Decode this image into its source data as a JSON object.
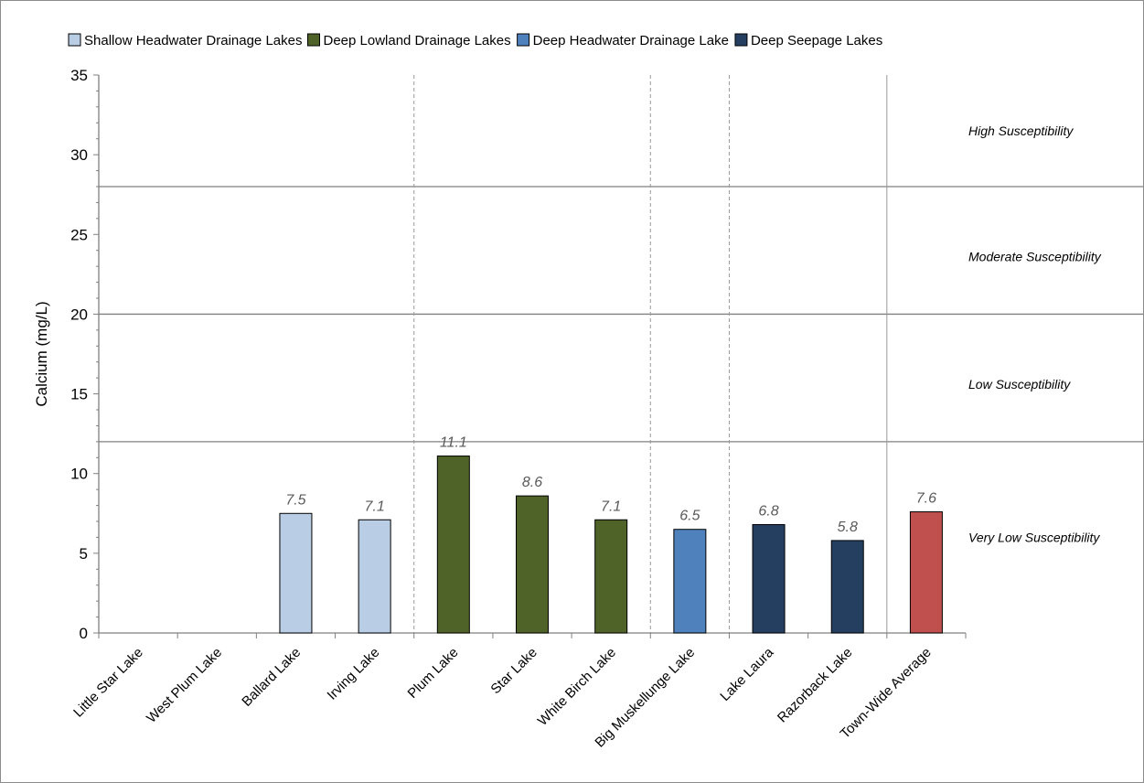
{
  "chart_data": {
    "type": "bar",
    "title": "",
    "xlabel": "",
    "ylabel": "Calcium (mg/L)",
    "ylim": [
      0,
      35
    ],
    "yticks": [
      0,
      5,
      10,
      15,
      20,
      25,
      30,
      35
    ],
    "grid": false,
    "legend_position": "top",
    "categories": [
      "Little Star Lake",
      "West Plum Lake",
      "Ballard Lake",
      "Irving Lake",
      "Plum Lake",
      "Star Lake",
      "White Birch Lake",
      "Big Muskellunge Lake",
      "Lake Laura",
      "Razorback Lake",
      "Town-Wide Average"
    ],
    "values": [
      null,
      null,
      7.5,
      7.1,
      11.1,
      8.6,
      7.1,
      6.5,
      6.8,
      5.8,
      7.6
    ],
    "value_labels": [
      "",
      "",
      "7.5",
      "7.1",
      "11.1",
      "8.6",
      "7.1",
      "6.5",
      "6.8",
      "5.8",
      "7.6"
    ],
    "bar_groups": [
      "shallow-headwater",
      "shallow-headwater",
      "shallow-headwater",
      "shallow-headwater",
      "deep-lowland",
      "deep-lowland",
      "deep-lowland",
      "deep-headwater",
      "deep-seepage",
      "deep-seepage",
      "average"
    ],
    "group_colors": {
      "shallow-headwater": "#b9cde5",
      "deep-lowland": "#4f6228",
      "deep-headwater": "#4f81bd",
      "deep-seepage": "#243f60",
      "average": "#c0504d"
    },
    "legend": [
      {
        "label": "Shallow Headwater Drainage Lakes",
        "group": "shallow-headwater"
      },
      {
        "label": "Deep Lowland Drainage Lakes",
        "group": "deep-lowland"
      },
      {
        "label": "Deep Headwater Drainage Lake",
        "group": "deep-headwater"
      },
      {
        "label": "Deep Seepage Lakes",
        "group": "deep-seepage"
      }
    ],
    "zone_thresholds": [
      12,
      20,
      28
    ],
    "zones": [
      {
        "label": "High Susceptibility",
        "value": 31.5
      },
      {
        "label": "Moderate Susceptibility",
        "value": 23.6
      },
      {
        "label": "Low Susceptibility",
        "value": 15.6
      },
      {
        "label": "Very Low Susceptibility",
        "value": 6.0
      }
    ],
    "group_separators": [
      {
        "after_index": 3,
        "style": "dashed"
      },
      {
        "after_index": 6,
        "style": "dashed"
      },
      {
        "after_index": 7,
        "style": "dashed"
      },
      {
        "after_index": 9,
        "style": "solid"
      }
    ]
  }
}
